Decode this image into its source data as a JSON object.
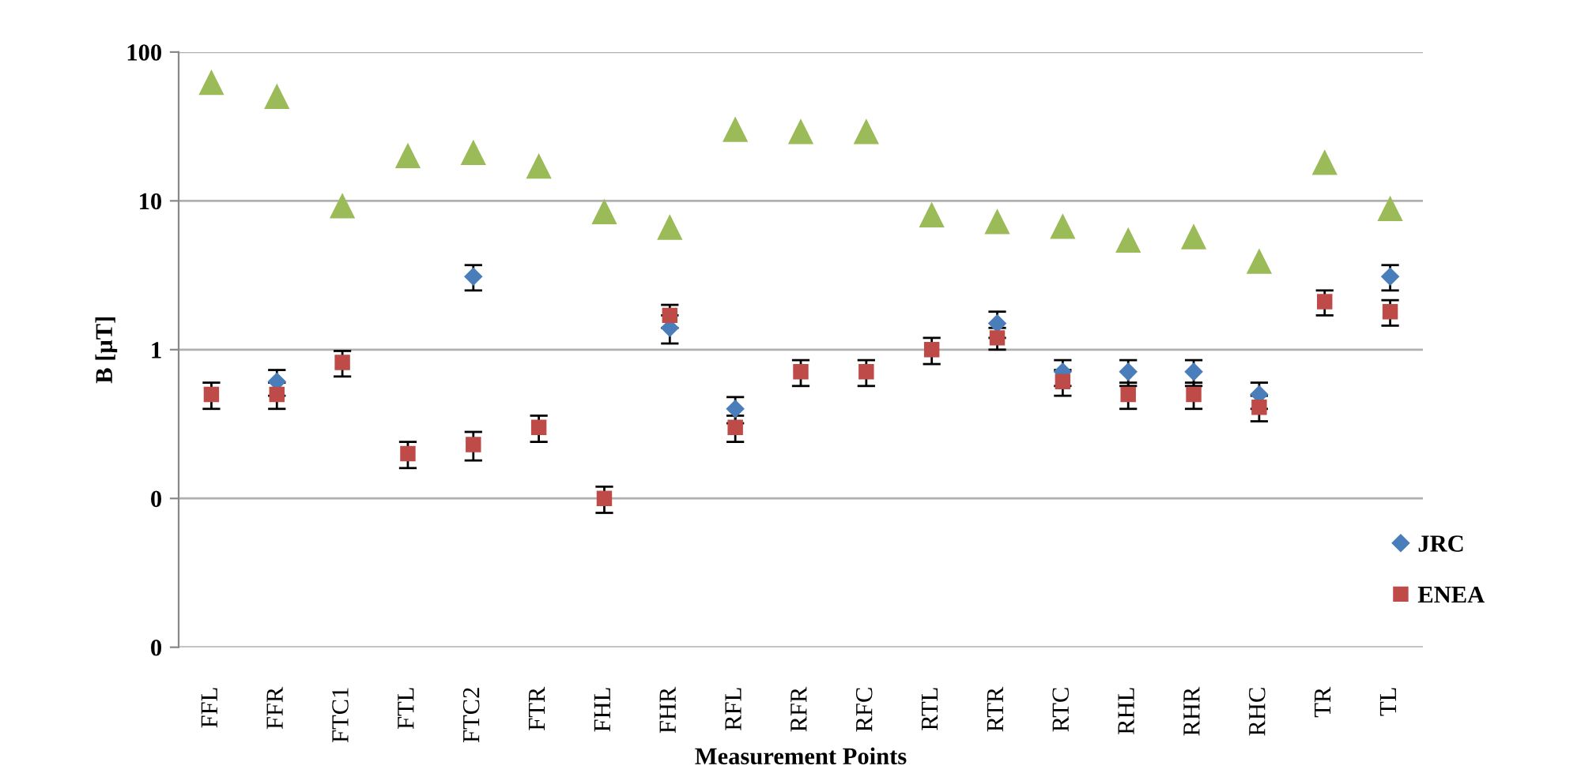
{
  "chart_data": {
    "type": "scatter",
    "xlabel": "Measurement Points",
    "ylabel": "B [μT]",
    "categories": [
      "FFL",
      "FFR",
      "FTC1",
      "FTL",
      "FTC2",
      "FTR",
      "FHL",
      "FHR",
      "RFL",
      "RFR",
      "RFC",
      "RTL",
      "RTR",
      "RTC",
      "RHL",
      "RHR",
      "RHC",
      "TR",
      "TL"
    ],
    "log": "y",
    "ylim": [
      0.01,
      100
    ],
    "yticks": [
      {
        "value": 0.01,
        "label": "0"
      },
      {
        "value": 0.1,
        "label": "0"
      },
      1,
      10,
      100
    ],
    "grid": "y",
    "legend": "bottom right",
    "series": [
      {
        "name": "JRC",
        "color": "#4a7ebb",
        "marker": "diamond",
        "values": [
          null,
          0.61,
          null,
          null,
          3.1,
          null,
          null,
          1.4,
          0.4,
          null,
          null,
          null,
          1.5,
          0.71,
          0.71,
          0.71,
          0.5,
          null,
          3.1
        ],
        "errors": [
          null,
          0.12,
          null,
          null,
          0.6,
          null,
          null,
          0.3,
          0.08,
          null,
          null,
          null,
          0.3,
          0.14,
          0.14,
          0.14,
          0.1,
          null,
          0.6
        ]
      },
      {
        "name": "ENEA",
        "color": "#be4b48",
        "marker": "square",
        "values": [
          0.5,
          0.5,
          0.82,
          0.2,
          0.23,
          0.3,
          0.1,
          1.7,
          0.3,
          0.71,
          0.71,
          1.0,
          1.2,
          0.61,
          0.5,
          0.5,
          0.41,
          2.1,
          1.8
        ],
        "errors": [
          0.1,
          0.1,
          0.16,
          0.04,
          0.05,
          0.06,
          0.02,
          0.3,
          0.06,
          0.14,
          0.14,
          0.2,
          0.2,
          0.12,
          0.1,
          0.1,
          0.08,
          0.4,
          0.35
        ]
      },
      {
        "color": "#9bbb59",
        "marker": "triangle",
        "values": [
          62,
          50,
          9.2,
          20,
          21,
          17,
          8.4,
          6.6,
          30,
          29,
          29,
          8.0,
          7.2,
          6.7,
          5.4,
          5.7,
          3.9,
          18,
          8.8
        ]
      }
    ]
  }
}
